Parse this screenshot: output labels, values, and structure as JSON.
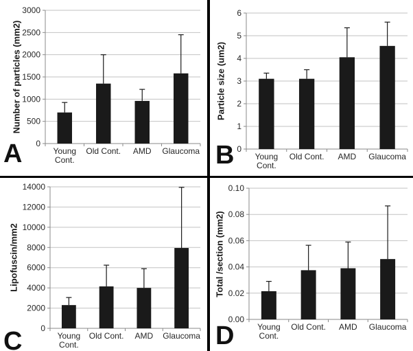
{
  "figure": {
    "panels": [
      "A",
      "B",
      "C",
      "D"
    ],
    "colors": {
      "background": "#ffffff",
      "bar": "#1a1a1a",
      "error": "#1a1a1a",
      "grid": "#c2c2c2",
      "axis": "#8a8a8a",
      "text": "#262626",
      "divider": "#000000"
    }
  },
  "chart_data": [
    {
      "type": "bar",
      "panel": "A",
      "ylabel": "Number of particles (mm2)",
      "xlabel": "",
      "categories": [
        "Young Cont.",
        "Old Cont.",
        "AMD",
        "Glaucoma"
      ],
      "values": [
        700,
        1350,
        960,
        1580
      ],
      "errors_up": [
        225,
        650,
        260,
        870
      ],
      "ylim": [
        0,
        3000
      ],
      "yticks": [
        0,
        500,
        1000,
        1500,
        2000,
        2500,
        3000
      ],
      "ytick_labels": [
        "0",
        "500",
        "1000",
        "1500",
        "2000",
        "2500",
        "3000"
      ],
      "grid": true,
      "legend": "none"
    },
    {
      "type": "bar",
      "panel": "B",
      "ylabel": "Particle size (um2)",
      "xlabel": "",
      "categories": [
        "Young Cont.",
        "Old Cont.",
        "AMD",
        "Glaucoma"
      ],
      "values": [
        3.1,
        3.1,
        4.05,
        4.55
      ],
      "errors_up": [
        0.25,
        0.4,
        1.3,
        1.05
      ],
      "ylim": [
        0,
        6
      ],
      "yticks": [
        0,
        1,
        2,
        3,
        4,
        5,
        6
      ],
      "ytick_labels": [
        "0",
        "1",
        "2",
        "3",
        "4",
        "5",
        "6"
      ],
      "grid": true,
      "legend": "none"
    },
    {
      "type": "bar",
      "panel": "C",
      "ylabel": "Lipofuscin/mm2",
      "xlabel": "",
      "categories": [
        "Young Cont.",
        "Old Cont.",
        "AMD",
        "Glaucoma"
      ],
      "values": [
        2300,
        4150,
        4000,
        7950
      ],
      "errors_up": [
        750,
        2100,
        1900,
        6000
      ],
      "ylim": [
        0,
        14000
      ],
      "yticks": [
        0,
        2000,
        4000,
        6000,
        8000,
        10000,
        12000,
        14000
      ],
      "ytick_labels": [
        "0",
        "2000",
        "4000",
        "6000",
        "8000",
        "10000",
        "12000",
        "14000"
      ],
      "grid": true,
      "legend": "none"
    },
    {
      "type": "bar",
      "panel": "D",
      "ylabel": "Total /section (mm2)",
      "xlabel": "",
      "categories": [
        "Young Cont.",
        "Old Cont.",
        "AMD",
        "Glaucoma"
      ],
      "values": [
        0.0215,
        0.0375,
        0.039,
        0.046
      ],
      "errors_up": [
        0.0075,
        0.019,
        0.02,
        0.0405
      ],
      "ylim": [
        0,
        0.1
      ],
      "yticks": [
        0,
        0.02,
        0.04,
        0.06,
        0.08,
        0.1
      ],
      "ytick_labels": [
        "0.00",
        "0.02",
        "0.04",
        "0.06",
        "0.08",
        "0.10"
      ],
      "grid": true,
      "legend": "none"
    }
  ]
}
